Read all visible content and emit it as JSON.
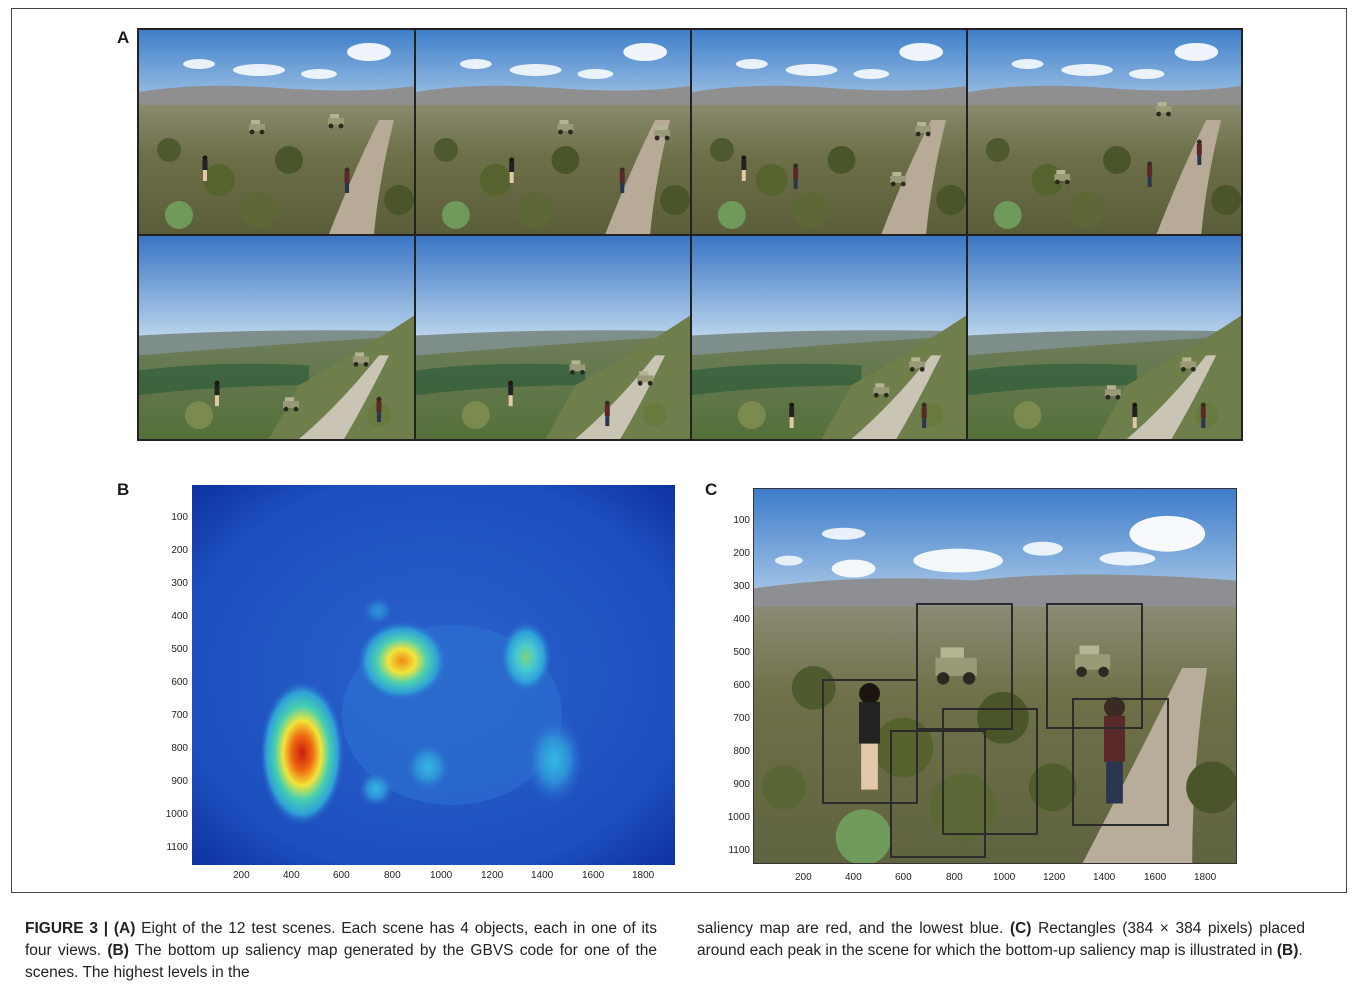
{
  "figure": {
    "panel_a_letter": "A",
    "panel_b_letter": "B",
    "panel_c_letter": "C"
  },
  "panel_b": {
    "y_ticks": [
      "100",
      "200",
      "300",
      "400",
      "500",
      "600",
      "700",
      "800",
      "900",
      "1000",
      "1100"
    ],
    "x_ticks": [
      "200",
      "400",
      "600",
      "800",
      "1000",
      "1200",
      "1400",
      "1600",
      "1800"
    ],
    "colormap": {
      "low": "#1f4fbf",
      "mid": "#2fa0d8",
      "high": "#c81e10"
    }
  },
  "panel_c": {
    "y_ticks": [
      "100",
      "200",
      "300",
      "400",
      "500",
      "600",
      "700",
      "800",
      "900",
      "1000",
      "1100"
    ],
    "x_ticks": [
      "200",
      "400",
      "600",
      "800",
      "1000",
      "1200",
      "1400",
      "1600",
      "1800"
    ],
    "rectangle_size": "384 × 384"
  },
  "caption": {
    "label": "FIGURE 3 |",
    "a_tag": "(A)",
    "a_text": " Eight of the 12 test scenes. Each scene has 4 objects, each in one of its four views. ",
    "b_tag": "(B)",
    "b_text": " The bottom up saliency map generated by the GBVS code for one of the scenes. The highest levels in the",
    "col2_text1": "saliency map are red, and the lowest blue. ",
    "c_tag": "(C)",
    "c_text": " Rectangles (384 × 384 pixels) placed around each peak in the scene for which the bottom-up saliency map is illustrated in ",
    "c_ref": "(B)",
    "c_end": "."
  }
}
